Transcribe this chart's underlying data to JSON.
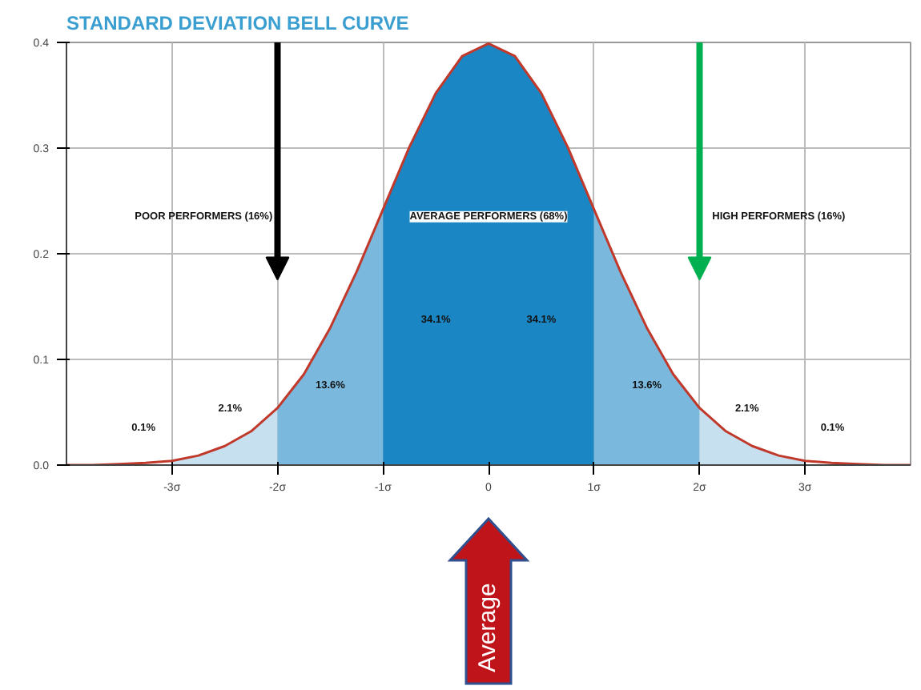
{
  "chart_data": {
    "type": "line",
    "title": "STANDARD DEVIATION BELL CURVE",
    "xlim": [
      -4,
      4
    ],
    "ylim": [
      0,
      0.4
    ],
    "xticks": [
      {
        "value": -3,
        "label": "-3σ"
      },
      {
        "value": -2,
        "label": "-2σ"
      },
      {
        "value": -1,
        "label": "-1σ"
      },
      0,
      {
        "value": 1,
        "label": "1σ"
      },
      {
        "value": 2,
        "label": "2σ"
      },
      {
        "value": 3,
        "label": "3σ"
      }
    ],
    "yticks": [
      {
        "value": 0,
        "label": "0.0"
      },
      0.1,
      0.2,
      0.3,
      0.4
    ],
    "grid": true,
    "series": [
      {
        "type": "area",
        "color": "#c7e0f0",
        "x": [
          -3,
          -2.75,
          -2.5,
          -2.25,
          -2
        ],
        "values": [
          0.004,
          0.009,
          0.018,
          0.032,
          0.054
        ]
      },
      {
        "type": "area",
        "color": "#7ab9dd",
        "x": [
          -2,
          -1.75,
          -1.5,
          -1.25,
          -1
        ],
        "values": [
          0.054,
          0.086,
          0.13,
          0.183,
          0.242
        ]
      },
      {
        "type": "area",
        "color": "#1a86c4",
        "x": [
          -1,
          -0.75,
          -0.5,
          -0.25,
          0,
          0.25,
          0.5,
          0.75,
          1
        ],
        "values": [
          0.242,
          0.301,
          0.352,
          0.387,
          0.399,
          0.387,
          0.352,
          0.301,
          0.242
        ]
      },
      {
        "type": "area",
        "color": "#7ab9dd",
        "x": [
          1,
          1.25,
          1.5,
          1.75,
          2
        ],
        "values": [
          0.242,
          0.183,
          0.13,
          0.086,
          0.054
        ]
      },
      {
        "type": "area",
        "color": "#c7e0f0",
        "x": [
          2,
          2.25,
          2.5,
          2.75,
          3
        ],
        "values": [
          0.054,
          0.032,
          0.018,
          0.009,
          0.004
        ]
      },
      {
        "color": "#c0392b",
        "x": [
          -4,
          -3.75,
          -3.5,
          -3.25,
          -3,
          -2.75,
          -2.5,
          -2.25,
          -2,
          -1.75,
          -1.5,
          -1.25,
          -1,
          -0.75,
          -0.5,
          -0.25,
          0,
          0.25,
          0.5,
          0.75,
          1,
          1.25,
          1.5,
          1.75,
          2,
          2.25,
          2.5,
          2.75,
          3,
          3.25,
          3.5,
          3.75,
          4
        ],
        "values": [
          0.0,
          0.0,
          0.001,
          0.002,
          0.004,
          0.009,
          0.018,
          0.032,
          0.054,
          0.086,
          0.13,
          0.183,
          0.242,
          0.301,
          0.352,
          0.387,
          0.399,
          0.387,
          0.352,
          0.301,
          0.242,
          0.183,
          0.13,
          0.086,
          0.054,
          0.032,
          0.018,
          0.009,
          0.004,
          0.002,
          0.001,
          0.0,
          0.0
        ]
      }
    ],
    "annotations": [
      "POOR PERFORMERS (16%)",
      "AVERAGE PERFORMERS (68%)",
      "HIGH PERFORMERS (16%)",
      "34.1%",
      "34.1%",
      "13.6%",
      "13.6%",
      "2.1%",
      "2.1%",
      "0.1%",
      "0.1%",
      "Average"
    ]
  }
}
